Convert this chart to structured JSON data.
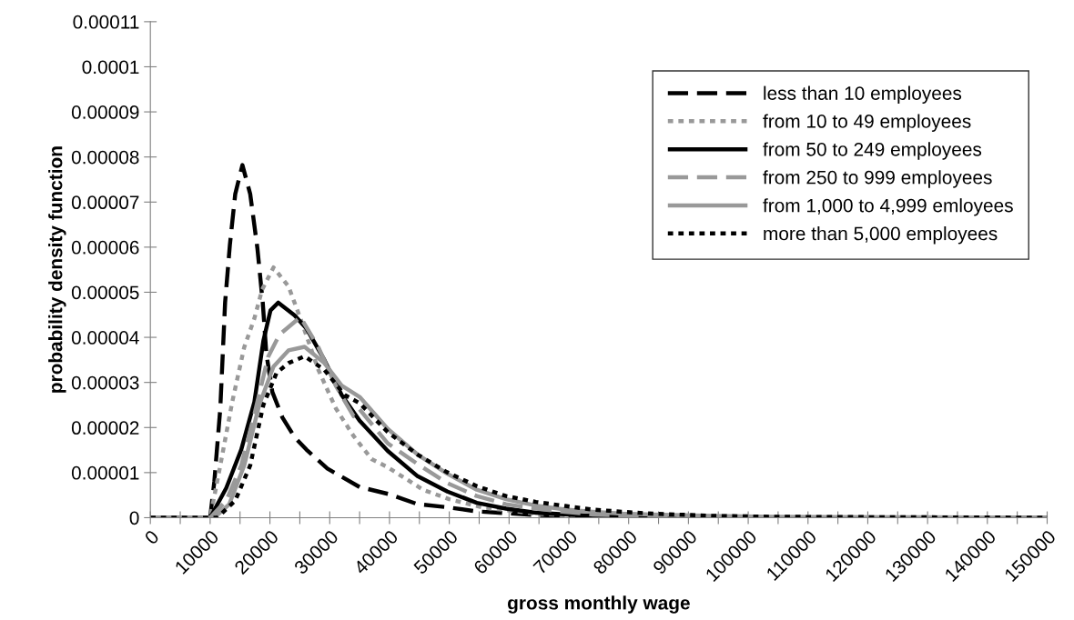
{
  "chart_data": {
    "type": "line",
    "xlabel": "gross monthly wage",
    "ylabel": "probability density function",
    "xlim": [
      0,
      150000
    ],
    "ylim": [
      0,
      0.00011
    ],
    "xticks": [
      0,
      {
        "value": 5000,
        "label": null
      },
      10000,
      {
        "value": 15000,
        "label": null
      },
      20000,
      {
        "value": 25000,
        "label": null
      },
      30000,
      {
        "value": 35000,
        "label": null
      },
      40000,
      {
        "value": 45000,
        "label": null
      },
      50000,
      {
        "value": 55000,
        "label": null
      },
      60000,
      {
        "value": 65000,
        "label": null
      },
      70000,
      {
        "value": 75000,
        "label": null
      },
      80000,
      {
        "value": 85000,
        "label": null
      },
      90000,
      {
        "value": 95000,
        "label": null
      },
      100000,
      {
        "value": 105000,
        "label": null
      },
      110000,
      {
        "value": 115000,
        "label": null
      },
      120000,
      {
        "value": 125000,
        "label": null
      },
      130000,
      {
        "value": 135000,
        "label": null
      },
      140000,
      {
        "value": 145000,
        "label": null
      },
      150000
    ],
    "yticks": [
      0,
      {
        "value": 1e-05,
        "label": "0.00001"
      },
      {
        "value": 2e-05,
        "label": "0.00002"
      },
      {
        "value": 3e-05,
        "label": "0.00003"
      },
      {
        "value": 4e-05,
        "label": "0.00004"
      },
      {
        "value": 5e-05,
        "label": "0.00005"
      },
      {
        "value": 6e-05,
        "label": "0.00006"
      },
      {
        "value": 7e-05,
        "label": "0.00007"
      },
      {
        "value": 8e-05,
        "label": "0.00008"
      },
      {
        "value": 9e-05,
        "label": "0.00009"
      },
      {
        "value": 0.0001,
        "label": "0.0001"
      },
      {
        "value": 0.00011,
        "label": "0.00011"
      }
    ],
    "grid": false,
    "legend": "top right",
    "marker": "none",
    "series": [
      {
        "name": "less than 10 employees",
        "color": "#000000",
        "line_style": "dashed",
        "x": [
          0,
          10000,
          10700,
          11700,
          12500,
          13300,
          14200,
          15400,
          16700,
          17900,
          18800,
          19400,
          20400,
          22100,
          24100,
          26100,
          29600,
          35000,
          40000,
          44700,
          49800,
          54600,
          64500,
          74000,
          84000,
          150000
        ],
        "values": [
          0,
          0,
          8e-06,
          2.43e-05,
          4.77e-05,
          6.05e-05,
          7.18e-05,
          7.82e-05,
          7.18e-05,
          5.98e-05,
          4.77e-05,
          3.64e-05,
          2.79e-05,
          2.22e-05,
          1.79e-05,
          1.51e-05,
          1.09e-05,
          6.8e-06,
          5.2e-06,
          3e-06,
          2.3e-06,
          1.4e-06,
          6e-07,
          2e-07,
          0,
          0
        ]
      },
      {
        "name": "from 10 to 49 employees",
        "color": "#999999",
        "line_style": "dotted",
        "x": [
          0,
          10000,
          11700,
          13700,
          15700,
          17400,
          18700,
          20600,
          23100,
          25100,
          28100,
          31000,
          34000,
          37000,
          39700,
          45600,
          50000,
          55500,
          64500,
          74000,
          84000,
          150000
        ],
        "values": [
          0,
          0,
          1.16e-05,
          2.57e-05,
          3.78e-05,
          4.42e-05,
          5.06e-05,
          5.55e-05,
          5.13e-05,
          4.42e-05,
          3.28e-05,
          2.43e-05,
          1.81e-05,
          1.3e-05,
          1.12e-05,
          6.2e-06,
          4.1e-06,
          2.3e-06,
          9e-07,
          2e-07,
          0,
          0
        ]
      },
      {
        "name": "from 50 to 249 employees",
        "color": "#000000",
        "line_style": "solid",
        "x": [
          0,
          10000,
          12700,
          15200,
          17400,
          18900,
          20100,
          21400,
          24100,
          26100,
          29100,
          32000,
          35000,
          39700,
          44700,
          49700,
          54600,
          59500,
          64500,
          74000,
          84000,
          95000,
          150000
        ],
        "values": [
          0,
          0,
          6.6e-06,
          1.51e-05,
          2.57e-05,
          3.92e-05,
          4.6e-05,
          4.77e-05,
          4.49e-05,
          4.2e-05,
          3.5e-05,
          2.72e-05,
          2.15e-05,
          1.48e-05,
          9.2e-06,
          5.8e-06,
          3.3e-06,
          2e-06,
          1.1e-06,
          4e-07,
          1e-07,
          0,
          0
        ]
      },
      {
        "name": "from 250 to 999 employees",
        "color": "#999999",
        "line_style": "dashed",
        "x": [
          0,
          10000,
          12700,
          15200,
          17400,
          19700,
          21600,
          25100,
          28100,
          31000,
          34000,
          35000,
          39700,
          44700,
          49600,
          54600,
          59500,
          64500,
          69400,
          74000,
          84000,
          94000,
          110000,
          150000
        ],
        "values": [
          0,
          0,
          3.8e-06,
          1.16e-05,
          2.29e-05,
          3.57e-05,
          4.06e-05,
          4.45e-05,
          3.78e-05,
          2.93e-05,
          2.25e-05,
          2.4e-05,
          1.65e-05,
          1.19e-05,
          7.7e-06,
          4.8e-06,
          3e-06,
          2e-06,
          1.3e-06,
          7e-07,
          3e-07,
          1e-07,
          0,
          0
        ]
      },
      {
        "name": "from 1,000 to 4,999 emloyees",
        "color": "#999999",
        "line_style": "solid",
        "x": [
          0,
          10700,
          13200,
          15700,
          18200,
          20600,
          23100,
          25800,
          29100,
          32000,
          35000,
          39700,
          44700,
          49600,
          54600,
          59500,
          64500,
          69400,
          74000,
          79000,
          84000,
          94000,
          104000,
          125000,
          150000
        ],
        "values": [
          0,
          0,
          3e-06,
          1.16e-05,
          2.5e-05,
          3.35e-05,
          3.71e-05,
          3.79e-05,
          3.43e-05,
          2.93e-05,
          2.68e-05,
          1.97e-05,
          1.4e-05,
          9.8e-06,
          6.2e-06,
          4.1e-06,
          2.7e-06,
          1.8e-06,
          1.3e-06,
          9e-07,
          7e-07,
          4e-07,
          2e-07,
          1e-07,
          0
        ]
      },
      {
        "name": "more than 5,000 employees",
        "color": "#000000",
        "line_style": "dotted",
        "x": [
          0,
          11200,
          14200,
          16700,
          18900,
          21100,
          23100,
          25800,
          29100,
          32500,
          35000,
          39700,
          44700,
          49600,
          54600,
          59500,
          64500,
          69400,
          74000,
          79000,
          84000,
          94000,
          104000,
          125000,
          150000
        ],
        "values": [
          0,
          0,
          3.8e-06,
          1.16e-05,
          2.5e-05,
          3.21e-05,
          3.43e-05,
          3.58e-05,
          3.28e-05,
          2.72e-05,
          2.54e-05,
          1.9e-05,
          1.4e-05,
          1.01e-05,
          7e-06,
          4.8e-06,
          3.5e-06,
          2.6e-06,
          1.8e-06,
          1.3e-06,
          9e-07,
          4e-07,
          2e-07,
          1e-07,
          0
        ]
      }
    ]
  }
}
